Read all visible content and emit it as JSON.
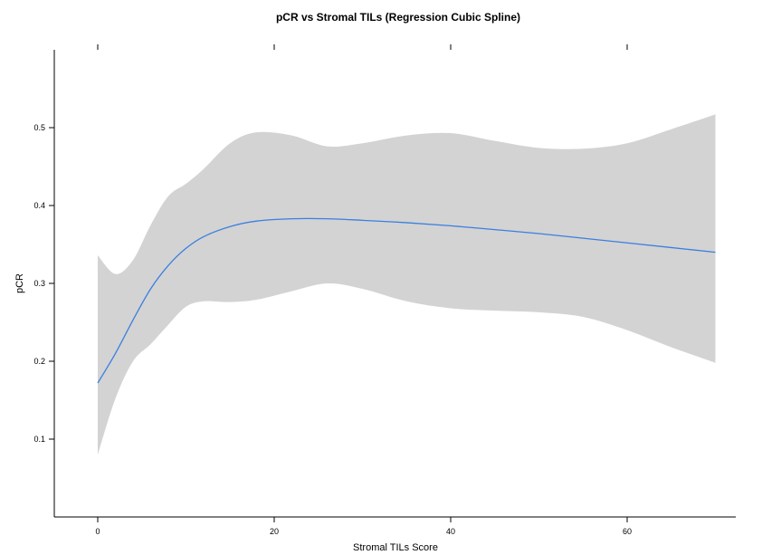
{
  "chart_data": {
    "type": "line",
    "title": "pCR vs Stromal TILs (Regression Cubic Spline)",
    "xlabel": "Stromal TILs Score",
    "ylabel": "pCR",
    "xlim": [
      -5,
      72
    ],
    "ylim": [
      0,
      0.6
    ],
    "xticks": [
      0,
      20,
      40,
      60
    ],
    "yticks": [
      0.1,
      0.2,
      0.3,
      0.4,
      0.5
    ],
    "x_tick_labels": [
      "0",
      "20",
      "40",
      "60"
    ],
    "y_tick_labels": [
      "0.1",
      "0.2",
      "0.3",
      "0.4",
      "0.5"
    ],
    "grid": false,
    "series": [
      {
        "color": "#3a7fe0",
        "x": [
          0,
          2,
          4,
          6,
          8,
          10,
          12,
          15,
          18,
          22,
          26,
          30,
          35,
          40,
          45,
          50,
          55,
          60,
          65,
          70
        ],
        "y": [
          0.172,
          0.21,
          0.253,
          0.293,
          0.323,
          0.345,
          0.36,
          0.373,
          0.38,
          0.383,
          0.383,
          0.381,
          0.378,
          0.374,
          0.369,
          0.364,
          0.358,
          0.352,
          0.346,
          0.34
        ],
        "band_color": "#d3d3d3",
        "upper": [
          0.336,
          0.312,
          0.33,
          0.375,
          0.412,
          0.428,
          0.447,
          0.48,
          0.494,
          0.49,
          0.476,
          0.48,
          0.49,
          0.493,
          0.483,
          0.474,
          0.473,
          0.48,
          0.498,
          0.517
        ],
        "lower": [
          0.08,
          0.152,
          0.2,
          0.222,
          0.247,
          0.27,
          0.277,
          0.276,
          0.279,
          0.29,
          0.3,
          0.293,
          0.277,
          0.268,
          0.265,
          0.263,
          0.257,
          0.24,
          0.218,
          0.198
        ]
      }
    ]
  }
}
